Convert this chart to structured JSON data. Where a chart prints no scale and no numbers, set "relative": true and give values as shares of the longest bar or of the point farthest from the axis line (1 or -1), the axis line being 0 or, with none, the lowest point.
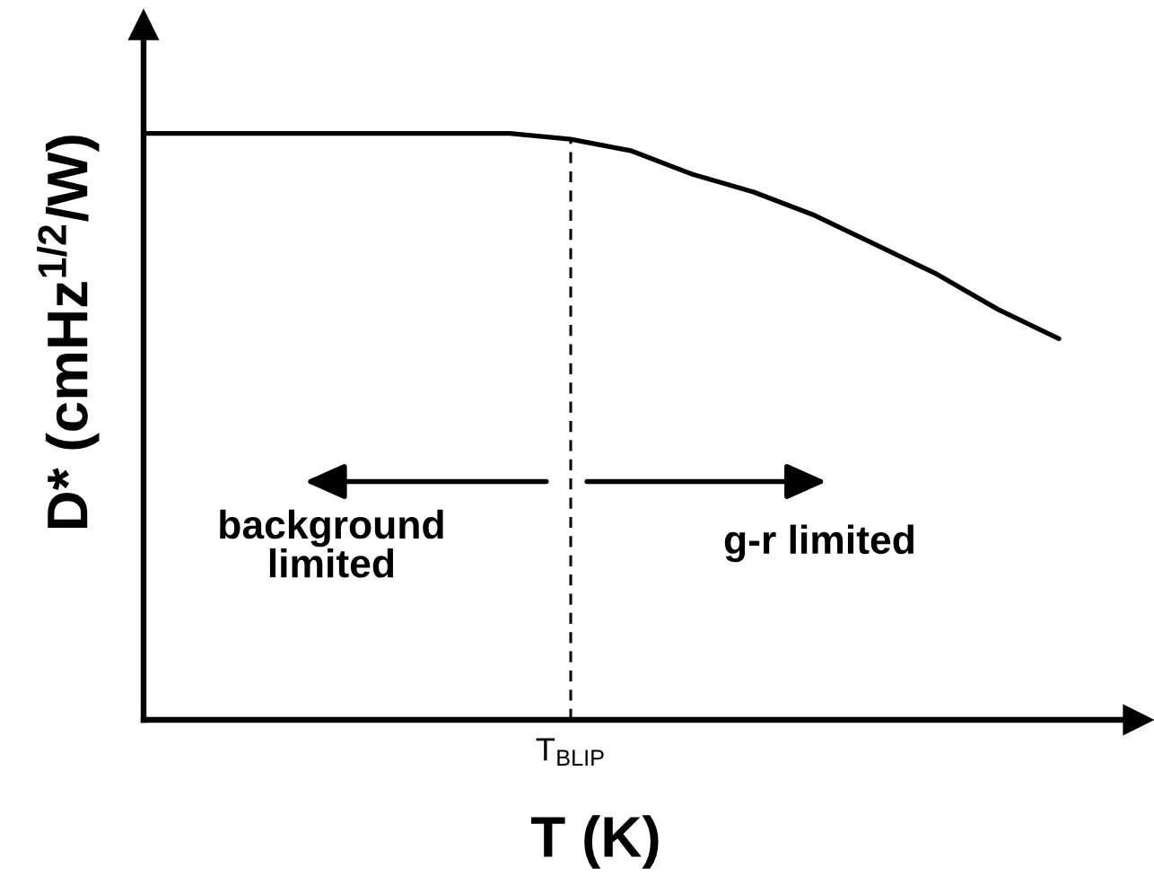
{
  "chart_data": {
    "type": "line",
    "relative": true,
    "xlabel": "T (K)",
    "ylabel": "D* (cmHz$^{1/2}$/W)",
    "categories": [
      null,
      null,
      null,
      null,
      null,
      null,
      null,
      null,
      null,
      null,
      null,
      null,
      null,
      null,
      null,
      null
    ],
    "series": [
      {
        "color": "#000000",
        "line_style": "solid",
        "values": [
          1,
          1,
          1,
          1,
          1,
          1,
          1,
          0.99,
          0.97,
          0.93,
          0.9,
          0.86,
          0.81,
          0.76,
          0.7,
          0.65
        ]
      }
    ],
    "annotations": [
      "background\nlimited",
      "g-r limited",
      "T$_{BLIP}$"
    ]
  }
}
